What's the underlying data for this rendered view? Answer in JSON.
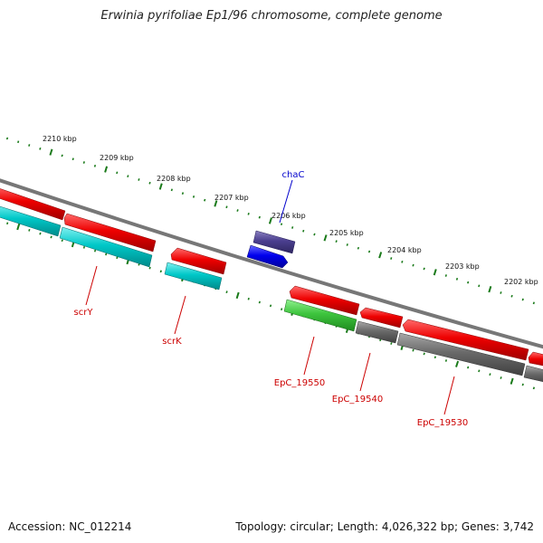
{
  "header": {
    "title": "Erwinia pyrifoliae Ep1/96 chromosome, complete genome"
  },
  "footer": {
    "accession": "Accession: NC_012214",
    "summary": "Topology: circular; Length: 4,026,322 bp; Genes: 3,742"
  },
  "scale": {
    "ticks": [
      {
        "label": "2210 kbp"
      },
      {
        "label": "2209 kbp"
      },
      {
        "label": "2208 kbp"
      },
      {
        "label": "2207 kbp"
      },
      {
        "label": "2206 kbp"
      },
      {
        "label": "2205 kbp"
      },
      {
        "label": "2204 kbp"
      },
      {
        "label": "2203 kbp"
      },
      {
        "label": "2202 kbp"
      }
    ]
  },
  "genes": [
    {
      "label": "chaC",
      "color": "#0000cc"
    },
    {
      "label": "scrY",
      "color": "#cc0000"
    },
    {
      "label": "scrK",
      "color": "#cc0000"
    },
    {
      "label": "EpC_19550",
      "color": "#cc0000"
    },
    {
      "label": "EpC_19540",
      "color": "#cc0000"
    },
    {
      "label": "EpC_19530",
      "color": "#cc0000"
    }
  ],
  "colors": {
    "cds_forward": "#ee0000",
    "cds_reverse": "#00c8c8",
    "rna": "#3dc43d",
    "pseudo": "#6a6a6a",
    "regulatory": "#4b3f8f",
    "repeat": "#0000ee",
    "backbone": "#777777",
    "tick": "#1a7a1a"
  }
}
